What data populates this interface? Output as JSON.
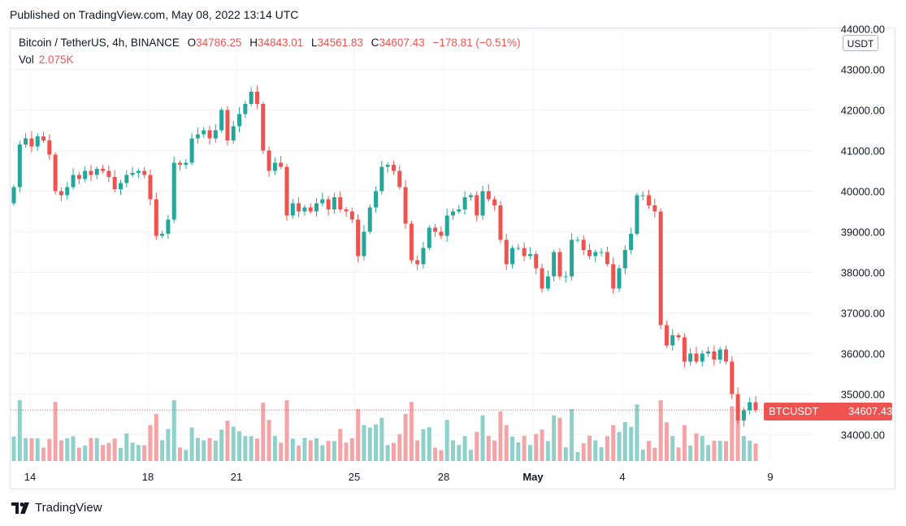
{
  "header": {
    "published": "Published on TradingView.com, May 08, 2022 13:14 UTC"
  },
  "legend": {
    "symbol": "Bitcoin / TetherUS, 4h, BINANCE",
    "open_label": "O",
    "open": "34786.25",
    "high_label": "H",
    "high": "34843.01",
    "low_label": "L",
    "low": "34561.83",
    "close_label": "C",
    "close": "34607.43",
    "change": "−178.81 (−0.51%)",
    "vol_label": "Vol",
    "vol": "2.075K"
  },
  "currency_badge": "USDT",
  "price_tag": {
    "ticker": "BTCUSDT",
    "value": "34607.43"
  },
  "brand": {
    "name": "TradingView",
    "logo_icon": "tradingview-logo-icon"
  },
  "colors": {
    "up": "#26a69a",
    "down": "#ef5350",
    "up_vol": "#8fd1ca",
    "down_vol": "#f4a4a6",
    "grid": "#f0f3fa",
    "text": "#131722"
  },
  "chart_data": {
    "type": "candlestick",
    "title": "Bitcoin / TetherUS, 4h, BINANCE",
    "interval": "4h",
    "x_ticks": [
      "14",
      "18",
      "21",
      "25",
      "28",
      "May",
      "4",
      "9"
    ],
    "y_ticks": [
      "44000.00",
      "43000.00",
      "42000.00",
      "41000.00",
      "40000.00",
      "39000.00",
      "38000.00",
      "37000.00",
      "36000.00",
      "35000.00",
      "34000.00"
    ],
    "ylim": [
      33300,
      44050
    ],
    "last_price": 34607.43,
    "closes": [
      40100,
      41150,
      41300,
      41100,
      41350,
      41250,
      40900,
      40000,
      39900,
      40100,
      40400,
      40300,
      40500,
      40400,
      40550,
      40500,
      40350,
      40050,
      40200,
      40400,
      40450,
      40500,
      40400,
      39800,
      38900,
      38950,
      39300,
      40700,
      40650,
      40700,
      41300,
      41400,
      41500,
      41300,
      41500,
      42000,
      41250,
      41600,
      41900,
      42150,
      42450,
      42150,
      41000,
      40500,
      40700,
      40600,
      39400,
      39700,
      39500,
      39600,
      39500,
      39700,
      39800,
      39550,
      39850,
      39550,
      39500,
      39300,
      38400,
      39000,
      39600,
      40000,
      40600,
      40650,
      40500,
      40100,
      39200,
      38300,
      38200,
      38600,
      39100,
      39000,
      38900,
      39400,
      39500,
      39550,
      39850,
      39900,
      39400,
      40000,
      39800,
      39650,
      38800,
      38200,
      38600,
      38600,
      38400,
      38450,
      38100,
      37600,
      37900,
      38500,
      37900,
      37900,
      38800,
      38800,
      38550,
      38400,
      38500,
      38500,
      38200,
      37600,
      38100,
      38550,
      38950,
      39900,
      39900,
      39650,
      39500,
      36700,
      36200,
      36450,
      36400,
      35800,
      36000,
      35800,
      36000,
      36050,
      35850,
      36100,
      35800,
      35000,
      34350,
      34600,
      34800,
      34607
    ],
    "candle_count": 125,
    "volume_unit": "K"
  }
}
